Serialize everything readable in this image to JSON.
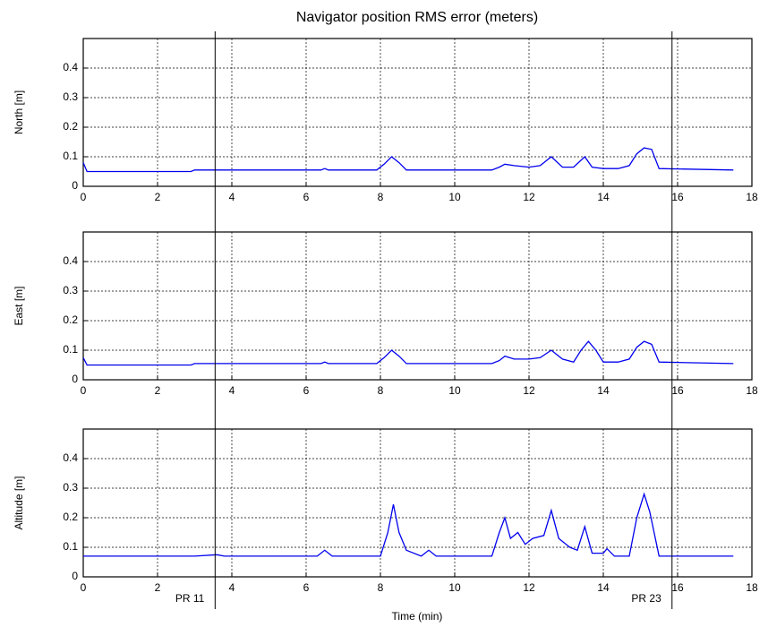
{
  "chart_data": [
    {
      "type": "line",
      "title": "Navigator position RMS error (meters)",
      "ylabel": "North [m]",
      "color": "#0000ee",
      "x": [
        0,
        0.1,
        2.9,
        3,
        6.4,
        6.5,
        6.6,
        7.9,
        8.1,
        8.3,
        8.5,
        8.7,
        11,
        11.2,
        11.35,
        11.6,
        12,
        12.3,
        12.6,
        12.9,
        13.2,
        13.5,
        13.7,
        14,
        14.4,
        14.7,
        14.9,
        15.1,
        15.3,
        15.5,
        17.5
      ],
      "values": [
        0.08,
        0.05,
        0.05,
        0.055,
        0.055,
        0.06,
        0.055,
        0.055,
        0.075,
        0.1,
        0.08,
        0.055,
        0.055,
        0.065,
        0.075,
        0.07,
        0.065,
        0.07,
        0.1,
        0.065,
        0.065,
        0.1,
        0.065,
        0.06,
        0.06,
        0.07,
        0.11,
        0.13,
        0.125,
        0.06,
        0.055
      ],
      "xlim": [
        0,
        18
      ],
      "xticks": [
        0,
        2,
        4,
        6,
        8,
        10,
        12,
        14,
        16,
        18
      ],
      "ylim": [
        0,
        0.5
      ],
      "yticks": [
        0,
        0.1,
        0.2,
        0.3,
        0.4
      ],
      "grid": true
    },
    {
      "type": "line",
      "ylabel": "East [m]",
      "color": "#0000ee",
      "x": [
        0,
        0.1,
        2.9,
        3,
        6.4,
        6.5,
        6.6,
        7.9,
        8.1,
        8.3,
        8.5,
        8.7,
        11,
        11.2,
        11.35,
        11.6,
        12,
        12.3,
        12.6,
        12.9,
        13.2,
        13.4,
        13.6,
        13.8,
        14,
        14.4,
        14.7,
        14.9,
        15.1,
        15.3,
        15.5,
        17.5
      ],
      "values": [
        0.075,
        0.05,
        0.05,
        0.055,
        0.055,
        0.06,
        0.055,
        0.055,
        0.075,
        0.1,
        0.08,
        0.055,
        0.055,
        0.065,
        0.08,
        0.07,
        0.07,
        0.075,
        0.1,
        0.07,
        0.06,
        0.1,
        0.13,
        0.1,
        0.06,
        0.06,
        0.07,
        0.11,
        0.13,
        0.12,
        0.06,
        0.055
      ],
      "xlim": [
        0,
        18
      ],
      "xticks": [
        0,
        2,
        4,
        6,
        8,
        10,
        12,
        14,
        16,
        18
      ],
      "ylim": [
        0,
        0.5
      ],
      "yticks": [
        0,
        0.1,
        0.2,
        0.3,
        0.4
      ],
      "grid": true
    },
    {
      "type": "line",
      "ylabel": "Altitude [m]",
      "xlabel": "Time (min)",
      "color": "#0000ee",
      "x": [
        0,
        3,
        3.6,
        3.8,
        6.3,
        6.5,
        6.7,
        8.0,
        8.2,
        8.35,
        8.5,
        8.7,
        9.1,
        9.3,
        9.5,
        11,
        11.2,
        11.35,
        11.5,
        11.7,
        11.9,
        12.1,
        12.4,
        12.6,
        12.8,
        13.1,
        13.3,
        13.5,
        13.7,
        14,
        14.1,
        14.3,
        14.7,
        14.9,
        15.1,
        15.25,
        15.5,
        17.5
      ],
      "values": [
        0.07,
        0.07,
        0.075,
        0.07,
        0.07,
        0.09,
        0.07,
        0.07,
        0.15,
        0.245,
        0.15,
        0.09,
        0.07,
        0.09,
        0.07,
        0.07,
        0.15,
        0.2,
        0.13,
        0.15,
        0.11,
        0.13,
        0.14,
        0.225,
        0.13,
        0.1,
        0.09,
        0.17,
        0.08,
        0.08,
        0.095,
        0.07,
        0.07,
        0.2,
        0.28,
        0.22,
        0.07,
        0.07
      ],
      "xlim": [
        0,
        18
      ],
      "xticks": [
        0,
        2,
        4,
        6,
        8,
        10,
        12,
        14,
        16,
        18
      ],
      "ylim": [
        0,
        0.5
      ],
      "yticks": [
        0,
        0.1,
        0.2,
        0.3,
        0.4
      ],
      "grid": true,
      "annotations": [
        {
          "text": "PR 11",
          "x": 3.55
        },
        {
          "text": "PR 23",
          "x": 15.85
        }
      ]
    }
  ]
}
